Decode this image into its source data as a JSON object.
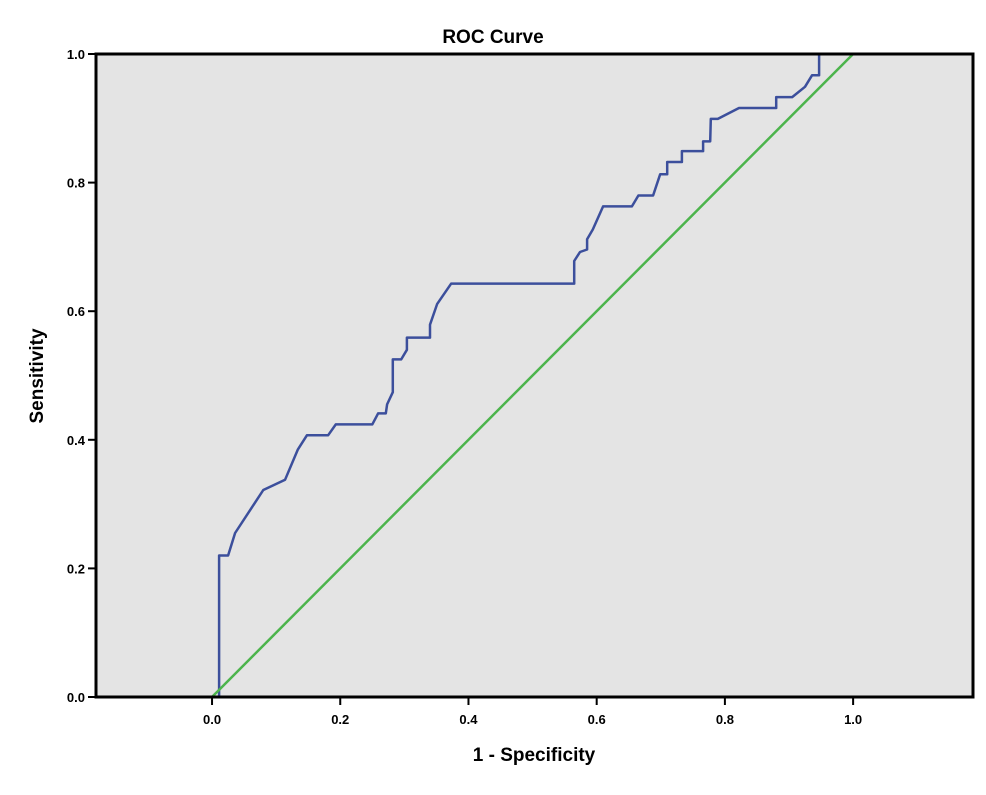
{
  "chart_data": {
    "type": "line",
    "title": "ROC Curve",
    "xlabel": "1 - Specificity",
    "ylabel": "Sensitivity",
    "xlim": [
      -0.181,
      1.187
    ],
    "ylim": [
      0,
      1
    ],
    "xticks": [
      "0.0",
      "0.2",
      "0.4",
      "0.6",
      "0.8",
      "1.0"
    ],
    "yticks": [
      "0.0",
      "0.2",
      "0.4",
      "0.6",
      "0.8",
      "1.0"
    ],
    "grid": false,
    "background_color": "#e4e4e4",
    "series": [
      {
        "color": "#3c4f9c",
        "points": [
          [
            0.011,
            0
          ],
          [
            0.011,
            0.22
          ],
          [
            0.025,
            0.22
          ],
          [
            0.036,
            0.255
          ],
          [
            0.08,
            0.322
          ],
          [
            0.114,
            0.338
          ],
          [
            0.134,
            0.385
          ],
          [
            0.148,
            0.407
          ],
          [
            0.181,
            0.407
          ],
          [
            0.193,
            0.424
          ],
          [
            0.25,
            0.424
          ],
          [
            0.259,
            0.441
          ],
          [
            0.271,
            0.441
          ],
          [
            0.273,
            0.455
          ],
          [
            0.282,
            0.474
          ],
          [
            0.282,
            0.525
          ],
          [
            0.295,
            0.525
          ],
          [
            0.304,
            0.54
          ],
          [
            0.304,
            0.559
          ],
          [
            0.34,
            0.559
          ],
          [
            0.34,
            0.579
          ],
          [
            0.351,
            0.611
          ],
          [
            0.373,
            0.643
          ],
          [
            0.565,
            0.643
          ],
          [
            0.565,
            0.678
          ],
          [
            0.574,
            0.692
          ],
          [
            0.585,
            0.696
          ],
          [
            0.585,
            0.712
          ],
          [
            0.594,
            0.727
          ],
          [
            0.61,
            0.763
          ],
          [
            0.655,
            0.763
          ],
          [
            0.665,
            0.78
          ],
          [
            0.688,
            0.78
          ],
          [
            0.699,
            0.813
          ],
          [
            0.71,
            0.813
          ],
          [
            0.71,
            0.832
          ],
          [
            0.733,
            0.832
          ],
          [
            0.733,
            0.849
          ],
          [
            0.766,
            0.849
          ],
          [
            0.766,
            0.864
          ],
          [
            0.777,
            0.864
          ],
          [
            0.778,
            0.899
          ],
          [
            0.789,
            0.899
          ],
          [
            0.822,
            0.916
          ],
          [
            0.88,
            0.916
          ],
          [
            0.88,
            0.933
          ],
          [
            0.905,
            0.933
          ],
          [
            0.925,
            0.949
          ],
          [
            0.936,
            0.967
          ],
          [
            0.947,
            0.967
          ],
          [
            0.947,
            1.0
          ],
          [
            1.0,
            1.0
          ]
        ]
      },
      {
        "color": "#4cb44c",
        "points": [
          [
            0,
            0
          ],
          [
            1,
            1
          ]
        ]
      }
    ]
  }
}
